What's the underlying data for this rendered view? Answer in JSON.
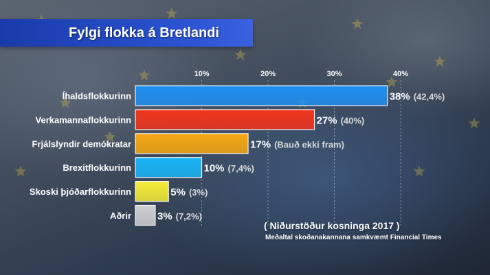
{
  "chart_data": {
    "type": "bar",
    "orientation": "horizontal",
    "title": "Fylgi flokka á Bretlandi",
    "xlim": [
      0,
      40
    ],
    "x_ticks": [
      "10%",
      "20%",
      "30%",
      "40%"
    ],
    "x_tick_values": [
      10,
      20,
      30,
      40
    ],
    "grid": true,
    "categories": [
      "Íhaldsflokkurinn",
      "Verkamannaflokkurinn",
      "Frjálslyndir demókratar",
      "Brexitflokkurinn",
      "Skoski þjóðarflokkurinn",
      "Aðrir"
    ],
    "values": [
      38,
      27,
      17,
      10,
      5,
      3
    ],
    "value_labels": [
      "38%",
      "27%",
      "17%",
      "10%",
      "5%",
      "3%"
    ],
    "previous_labels": [
      "(42,4%)",
      "(40%)",
      "(Bauð ekki fram)",
      "(7,4%)",
      "(3%)",
      "(7,2%)"
    ],
    "colors": [
      "#1f8ff0",
      "#f0341c",
      "#f6a712",
      "#18b4f4",
      "#f4ec38",
      "#cfcfd2"
    ]
  },
  "notes": {
    "main": "( Niðurstöður kosninga 2017 )",
    "sub": "Meðaltal skoðanakannana samkvæmt Financial Times"
  }
}
